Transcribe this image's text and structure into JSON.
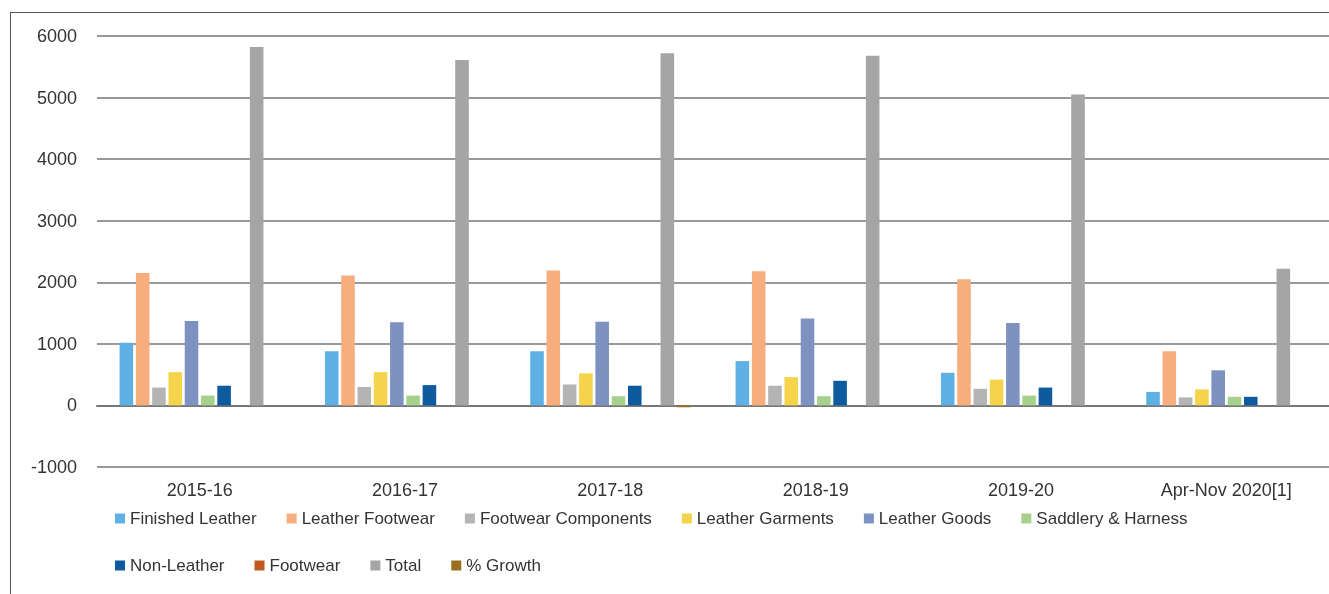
{
  "chart_data": {
    "type": "bar",
    "categories": [
      "2015-16",
      "2016-17",
      "2017-18",
      "2018-19",
      "2019-20",
      "Apr-Nov 2020[1]"
    ],
    "series": [
      {
        "name": "Finished Leather",
        "color": "#5eb0e5",
        "values": [
          1020,
          880,
          880,
          720,
          530,
          220
        ]
      },
      {
        "name": "Leather Footwear",
        "color": "#f8ae7c",
        "values": [
          2150,
          2110,
          2190,
          2180,
          2050,
          880
        ]
      },
      {
        "name": "Footwear Components",
        "color": "#b4b4b4",
        "values": [
          290,
          300,
          340,
          320,
          270,
          130
        ]
      },
      {
        "name": "Leather Garments",
        "color": "#f5d34a",
        "values": [
          540,
          540,
          520,
          460,
          420,
          260
        ]
      },
      {
        "name": "Leather Goods",
        "color": "#7d92c0",
        "values": [
          1370,
          1350,
          1360,
          1410,
          1340,
          570
        ]
      },
      {
        "name": "Saddlery & Harness",
        "color": "#a8d08d",
        "values": [
          160,
          160,
          150,
          150,
          160,
          140
        ]
      },
      {
        "name": "Non-Leather",
        "color": "#0d5b9e",
        "values": [
          320,
          330,
          320,
          400,
          290,
          140
        ]
      },
      {
        "name": "Footwear",
        "color": "#c0571e",
        "values": [
          null,
          null,
          null,
          null,
          null,
          null
        ]
      },
      {
        "name": "Total",
        "color": "#a5a5a5",
        "values": [
          5820,
          5610,
          5720,
          5680,
          5050,
          2220
        ]
      },
      {
        "name": "% Growth",
        "color": "#9c6e1f",
        "values": [
          null,
          null,
          -30,
          null,
          null,
          null
        ]
      }
    ],
    "ylim": [
      -1000,
      6000
    ],
    "yticks": [
      -1000,
      0,
      1000,
      2000,
      3000,
      4000,
      5000,
      6000
    ],
    "grid": "y",
    "legend": "bottom"
  }
}
